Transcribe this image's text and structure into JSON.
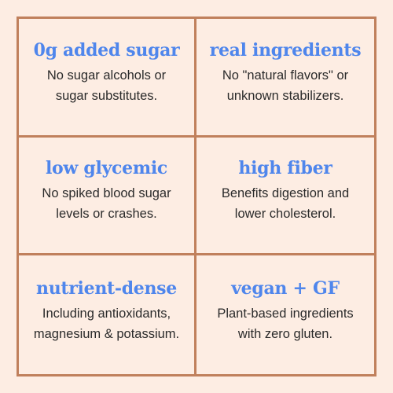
{
  "cards": [
    {
      "title": "0g added sugar",
      "lines": [
        "No sugar alcohols or",
        "sugar substitutes."
      ]
    },
    {
      "title": "real ingredients",
      "lines": [
        "No \"natural flavors\" or",
        "unknown stabilizers."
      ]
    },
    {
      "title": "low glycemic",
      "lines": [
        "No spiked blood sugar",
        "levels or crashes."
      ]
    },
    {
      "title": "high fiber",
      "lines": [
        "Benefits digestion and",
        "lower cholesterol."
      ]
    },
    {
      "title": "nutrient-dense",
      "lines": [
        "Including antioxidants,",
        "magnesium & potassium."
      ]
    },
    {
      "title": "vegan + GF",
      "lines": [
        "Plant-based ingredients",
        "with zero gluten."
      ]
    }
  ],
  "colors": {
    "background": "#fdede3",
    "border": "#c0805c",
    "heading": "#4f86ec",
    "text": "#2b2b2b"
  }
}
